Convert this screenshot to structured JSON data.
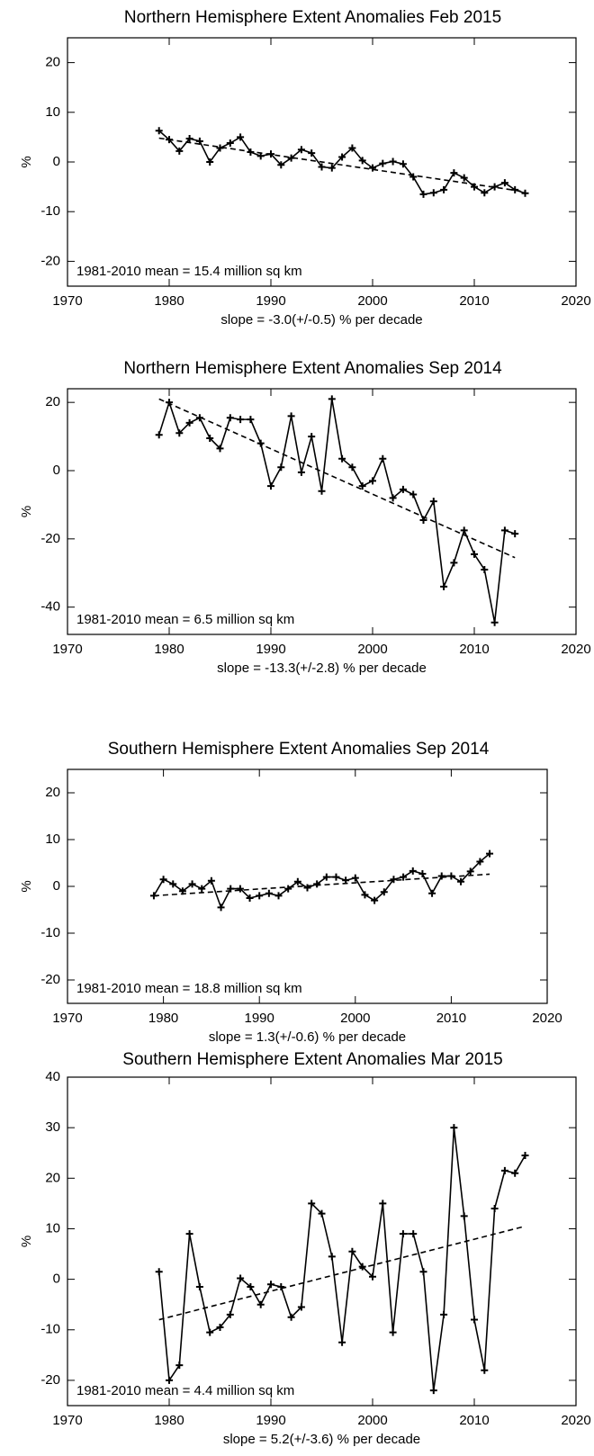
{
  "chart_data": [
    {
      "type": "line",
      "title": "Northern Hemisphere Extent Anomalies Feb 2015",
      "ylabel": "%",
      "xlabel": "slope =  -3.0(+/-0.5) % per decade",
      "annotation": "1981-2010 mean =  15.4 million sq km",
      "color": "#000000",
      "xlim": [
        1970,
        2020
      ],
      "xticks": [
        1970,
        1980,
        1990,
        2000,
        2010,
        2020
      ],
      "ylim": [
        -25,
        25
      ],
      "yticks": [
        -20,
        -10,
        0,
        10,
        20
      ],
      "x": [
        1979,
        1980,
        1981,
        1982,
        1983,
        1984,
        1985,
        1986,
        1987,
        1988,
        1989,
        1990,
        1991,
        1992,
        1993,
        1994,
        1995,
        1996,
        1997,
        1998,
        1999,
        2000,
        2001,
        2002,
        2003,
        2004,
        2005,
        2006,
        2007,
        2008,
        2009,
        2010,
        2011,
        2012,
        2013,
        2014,
        2015
      ],
      "values": [
        6.3,
        4.5,
        2.2,
        4.7,
        4.2,
        0,
        2.8,
        3.8,
        5,
        2,
        1.2,
        1.6,
        -0.6,
        0.8,
        2.5,
        1.8,
        -1,
        -1.2,
        1,
        2.8,
        0.3,
        -1.2,
        -0.3,
        0.1,
        -0.4,
        -3,
        -6.5,
        -6.2,
        -5.6,
        -2.2,
        -3.2,
        -5,
        -6.2,
        -5,
        -4.2,
        -5.6,
        -6.3
      ],
      "trend": {
        "x": [
          1979,
          2015
        ],
        "values": [
          4.8,
          -6
        ]
      }
    },
    {
      "type": "line",
      "title": "Northern Hemisphere Extent Anomalies Sep 2014",
      "ylabel": "%",
      "xlabel": "slope = -13.3(+/-2.8) % per decade",
      "annotation": "1981-2010 mean =   6.5 million sq km",
      "color": "#000000",
      "xlim": [
        1970,
        2020
      ],
      "xticks": [
        1970,
        1980,
        1990,
        2000,
        2010,
        2020
      ],
      "ylim": [
        -48,
        24
      ],
      "yticks": [
        -40,
        -20,
        0,
        20
      ],
      "x": [
        1979,
        1980,
        1981,
        1982,
        1983,
        1984,
        1985,
        1986,
        1987,
        1988,
        1989,
        1990,
        1991,
        1992,
        1993,
        1994,
        1995,
        1996,
        1997,
        1998,
        1999,
        2000,
        2001,
        2002,
        2003,
        2004,
        2005,
        2006,
        2007,
        2008,
        2009,
        2010,
        2011,
        2012,
        2013,
        2014
      ],
      "values": [
        10.5,
        20,
        11,
        14,
        15.5,
        9.5,
        6.5,
        15.5,
        15,
        15,
        8,
        -4.5,
        1,
        16,
        -0.5,
        10,
        -6,
        21,
        3.5,
        1,
        -4.5,
        -3,
        3.5,
        -8,
        -5.5,
        -7,
        -14.5,
        -9,
        -34,
        -27,
        -17.5,
        -24.5,
        -29,
        -44.5,
        -17.5,
        -18.5
      ],
      "trend": {
        "x": [
          1979,
          2014
        ],
        "values": [
          21,
          -25.5
        ]
      }
    },
    {
      "type": "line",
      "title": "Southern Hemisphere Extent Anomalies Sep 2014",
      "ylabel": "%",
      "xlabel": "slope =   1.3(+/-0.6) % per decade",
      "annotation": "1981-2010 mean =  18.8 million sq km",
      "color": "#000000",
      "xlim": [
        1970,
        2020
      ],
      "xticks": [
        1970,
        1980,
        1990,
        2000,
        2010,
        2020
      ],
      "ylim": [
        -25,
        25
      ],
      "yticks": [
        -20,
        -10,
        0,
        10,
        20
      ],
      "x": [
        1979,
        1980,
        1981,
        1982,
        1983,
        1984,
        1985,
        1986,
        1987,
        1988,
        1989,
        1990,
        1991,
        1992,
        1993,
        1994,
        1995,
        1996,
        1997,
        1998,
        1999,
        2000,
        2001,
        2002,
        2003,
        2004,
        2005,
        2006,
        2007,
        2008,
        2009,
        2010,
        2011,
        2012,
        2013,
        2014
      ],
      "values": [
        -2,
        1.5,
        0.5,
        -1,
        0.5,
        -0.5,
        1.2,
        -4.5,
        -0.5,
        -0.5,
        -2.5,
        -2,
        -1.5,
        -2,
        -0.5,
        1,
        -0.3,
        0.5,
        2,
        2,
        1.3,
        1.8,
        -1.8,
        -3,
        -1.2,
        1.5,
        2,
        3.3,
        2.7,
        -1.5,
        2.2,
        2.2,
        1,
        3.2,
        5.3,
        7
      ],
      "trend": {
        "x": [
          1979,
          2014
        ],
        "values": [
          -2,
          2.6
        ]
      }
    },
    {
      "type": "line",
      "title": "Southern Hemisphere Extent Anomalies Mar 2015",
      "ylabel": "%",
      "xlabel": "slope =   5.2(+/-3.6) % per decade",
      "annotation": "1981-2010 mean =   4.4 million sq km",
      "color": "#000000",
      "xlim": [
        1970,
        2020
      ],
      "xticks": [
        1970,
        1980,
        1990,
        2000,
        2010,
        2020
      ],
      "ylim": [
        -25,
        40
      ],
      "yticks": [
        -20,
        -10,
        0,
        10,
        20,
        30,
        40
      ],
      "x": [
        1979,
        1980,
        1981,
        1982,
        1983,
        1984,
        1985,
        1986,
        1987,
        1988,
        1989,
        1990,
        1991,
        1992,
        1993,
        1994,
        1995,
        1996,
        1997,
        1998,
        1999,
        2000,
        2001,
        2002,
        2003,
        2004,
        2005,
        2006,
        2007,
        2008,
        2009,
        2010,
        2011,
        2012,
        2013,
        2014,
        2015
      ],
      "values": [
        1.5,
        -20,
        -17,
        9,
        -1.5,
        -10.5,
        -9.5,
        -7,
        0.2,
        -1.5,
        -5,
        -1,
        -1.5,
        -7.5,
        -5.5,
        15,
        13,
        4.5,
        -12.5,
        5.5,
        2.5,
        0.5,
        15,
        -10.5,
        9,
        9,
        1.5,
        -22,
        -7,
        30,
        12.5,
        -8,
        -18,
        14,
        21.5,
        21,
        24.5
      ],
      "trend": {
        "x": [
          1979,
          2015
        ],
        "values": [
          -8,
          10.5
        ]
      }
    }
  ]
}
